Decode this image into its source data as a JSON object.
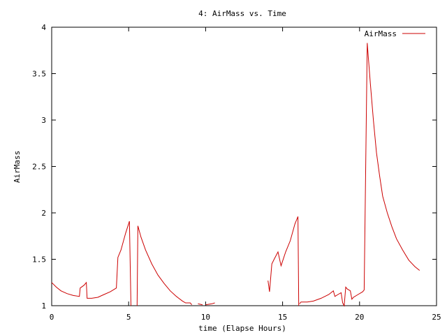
{
  "chart_data": {
    "type": "line",
    "title": "4: AirMass vs. Time",
    "xlabel": "time (Elapse Hours)",
    "ylabel": "AirMass",
    "xlim": [
      0,
      25
    ],
    "ylim": [
      1,
      4
    ],
    "xticks": [
      0,
      5,
      10,
      15,
      20,
      25
    ],
    "yticks": [
      1,
      1.5,
      2,
      2.5,
      3,
      3.5,
      4
    ],
    "xtick_labels": [
      "0",
      "5",
      "10",
      "15",
      "20",
      "25"
    ],
    "ytick_labels": [
      "1",
      "1.5",
      "2",
      "2.5",
      "3",
      "3.5",
      "4"
    ],
    "grid": false,
    "legend_position": "top-right",
    "series": [
      {
        "name": "AirMass",
        "color": "#cc0000",
        "segments": [
          {
            "x": [
              0,
              0.3,
              0.6,
              1.0,
              1.4,
              1.8,
              1.85,
              2.1,
              2.25,
              2.3,
              2.6,
              3.0,
              3.4,
              3.8,
              4.2,
              4.3,
              4.5,
              4.8,
              5.05
            ],
            "y": [
              1.25,
              1.2,
              1.16,
              1.13,
              1.11,
              1.1,
              1.19,
              1.22,
              1.25,
              1.08,
              1.08,
              1.09,
              1.12,
              1.15,
              1.19,
              1.52,
              1.6,
              1.78,
              1.91
            ]
          },
          {
            "x": [
              5.05,
              5.15
            ],
            "y": [
              1.91,
              1.0
            ]
          },
          {
            "x": [
              5.55,
              5.6,
              5.8,
              6.1,
              6.5,
              6.9,
              7.3,
              7.7,
              8.1,
              8.5,
              8.7,
              9.0,
              9.1
            ],
            "y": [
              1.0,
              1.86,
              1.74,
              1.6,
              1.45,
              1.33,
              1.24,
              1.16,
              1.1,
              1.05,
              1.03,
              1.03,
              1.01
            ]
          },
          {
            "x": [
              9.5,
              9.8
            ],
            "y": [
              1.02,
              1.01
            ]
          },
          {
            "x": [
              10.0,
              10.4,
              10.6
            ],
            "y": [
              1.01,
              1.02,
              1.03
            ]
          },
          {
            "x": [
              14.05,
              14.15,
              14.3,
              14.45,
              14.7,
              14.9,
              15.0,
              15.2,
              15.5,
              15.8,
              16.0,
              16.05
            ],
            "y": [
              1.27,
              1.15,
              1.45,
              1.5,
              1.58,
              1.43,
              1.48,
              1.58,
              1.7,
              1.88,
              1.96,
              1.0
            ]
          },
          {
            "x": [
              16.1,
              16.2,
              16.6,
              17.0,
              17.5,
              18.0,
              18.3,
              18.4,
              18.6,
              18.8,
              18.9,
              19.0,
              19.1,
              19.2,
              19.4,
              19.5,
              19.6,
              19.9,
              20.2,
              20.3,
              20.5,
              20.55,
              20.7,
              20.9,
              21.1,
              21.3,
              21.5,
              21.8,
              22.1,
              22.4,
              22.8,
              23.2,
              23.6,
              23.9
            ],
            "y": [
              1.02,
              1.04,
              1.04,
              1.05,
              1.08,
              1.12,
              1.16,
              1.1,
              1.12,
              1.14,
              1.03,
              1.0,
              1.2,
              1.18,
              1.16,
              1.07,
              1.09,
              1.12,
              1.15,
              1.17,
              3.83,
              3.72,
              3.4,
              3.0,
              2.65,
              2.4,
              2.18,
              2.0,
              1.85,
              1.72,
              1.6,
              1.49,
              1.42,
              1.38
            ]
          }
        ]
      }
    ]
  }
}
